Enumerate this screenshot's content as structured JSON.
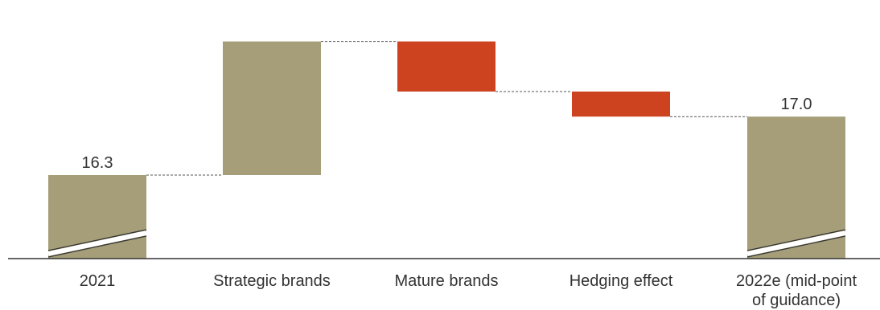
{
  "chart_data": {
    "type": "bar",
    "subtype": "waterfall",
    "categories": [
      "2021",
      "Strategic brands",
      "Mature brands",
      "Hedging effect",
      "2022e (mid-point of guidance)"
    ],
    "category_lines": [
      [
        "2021"
      ],
      [
        "Strategic brands"
      ],
      [
        "Mature brands"
      ],
      [
        "Hedging effect"
      ],
      [
        "2022e (mid-point",
        "of guidance)"
      ]
    ],
    "values": [
      16.3,
      1.6,
      -0.6,
      -0.3,
      17.0
    ],
    "bar_kind": [
      "total",
      "increase",
      "decrease",
      "decrease",
      "total"
    ],
    "data_labels": [
      "16.3",
      "",
      "",
      "",
      "17.0"
    ],
    "axis_break": true,
    "ylim": [
      15.3,
      18.3
    ],
    "colors": {
      "total": "#a59e78",
      "increase": "#a59e78",
      "decrease": "#cd4320",
      "connector": "#555555",
      "axis": "#333333",
      "text": "#333333"
    },
    "grid": false,
    "legend": "none",
    "title": "",
    "xlabel": "",
    "ylabel": ""
  }
}
